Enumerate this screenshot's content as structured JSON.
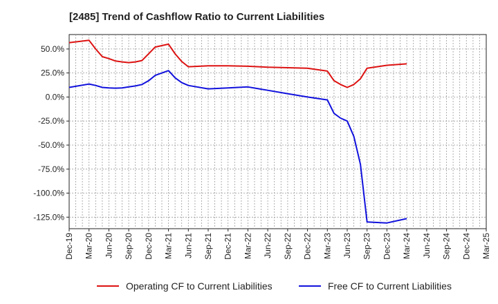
{
  "chart_data": {
    "type": "line",
    "title": "[2485]  Trend of Cashflow Ratio to Current Liabilities",
    "xlabel": "",
    "ylabel": "",
    "x_ticks": [
      "Dec-19",
      "Mar-20",
      "Jun-20",
      "Sep-20",
      "Dec-20",
      "Mar-21",
      "Jun-21",
      "Sep-21",
      "Dec-21",
      "Mar-22",
      "Jun-22",
      "Sep-22",
      "Dec-22",
      "Mar-23",
      "Jun-23",
      "Sep-23",
      "Dec-23",
      "Mar-24",
      "Jun-24",
      "Sep-24",
      "Dec-24",
      "Mar-25"
    ],
    "y_ticks": [
      50,
      25,
      0,
      -25,
      -50,
      -75,
      -100,
      -125
    ],
    "y_tick_labels": [
      "50.0%",
      "25.0%",
      "0.0%",
      "-25.0%",
      "-50.0%",
      "-75.0%",
      "-100.0%",
      "-125.0%"
    ],
    "ylim": [
      -137,
      65
    ],
    "grid": true,
    "legend_position": "bottom",
    "series": [
      {
        "name": "Operating CF to Current Liabilities",
        "color": "#dd1111",
        "points": [
          [
            0,
            56.5
          ],
          [
            3,
            59
          ],
          [
            4,
            50
          ],
          [
            5,
            42
          ],
          [
            6,
            40
          ],
          [
            7,
            37.5
          ],
          [
            8,
            36.5
          ],
          [
            9,
            35.8
          ],
          [
            10,
            36.5
          ],
          [
            11,
            38
          ],
          [
            12,
            45
          ],
          [
            13,
            52
          ],
          [
            15,
            55
          ],
          [
            16,
            45
          ],
          [
            17,
            37
          ],
          [
            18,
            31.5
          ],
          [
            21,
            32.5
          ],
          [
            24,
            32.5
          ],
          [
            27,
            32
          ],
          [
            30,
            31
          ],
          [
            33,
            30.5
          ],
          [
            36,
            30
          ],
          [
            39,
            27
          ],
          [
            40,
            17
          ],
          [
            41,
            13
          ],
          [
            42,
            10
          ],
          [
            43,
            13
          ],
          [
            44,
            19
          ],
          [
            45,
            30
          ],
          [
            48,
            33
          ],
          [
            51,
            34.5
          ]
        ]
      },
      {
        "name": "Free CF to Current Liabilities",
        "color": "#1111dd",
        "points": [
          [
            0,
            10
          ],
          [
            3,
            13.5
          ],
          [
            4,
            12
          ],
          [
            5,
            10
          ],
          [
            6,
            9.5
          ],
          [
            7,
            9.2
          ],
          [
            8,
            9.5
          ],
          [
            9,
            10.5
          ],
          [
            10,
            11.5
          ],
          [
            11,
            13
          ],
          [
            12,
            17
          ],
          [
            13,
            22.5
          ],
          [
            15,
            27.5
          ],
          [
            16,
            20
          ],
          [
            17,
            15
          ],
          [
            18,
            12
          ],
          [
            21,
            8.5
          ],
          [
            24,
            9.5
          ],
          [
            27,
            10.5
          ],
          [
            30,
            7
          ],
          [
            33,
            3.5
          ],
          [
            36,
            0
          ],
          [
            39,
            -3
          ],
          [
            40,
            -17
          ],
          [
            41,
            -22
          ],
          [
            42,
            -25
          ],
          [
            43,
            -41
          ],
          [
            44,
            -70
          ],
          [
            45,
            -130
          ],
          [
            48,
            -131
          ],
          [
            51,
            -126.5
          ]
        ]
      }
    ]
  }
}
